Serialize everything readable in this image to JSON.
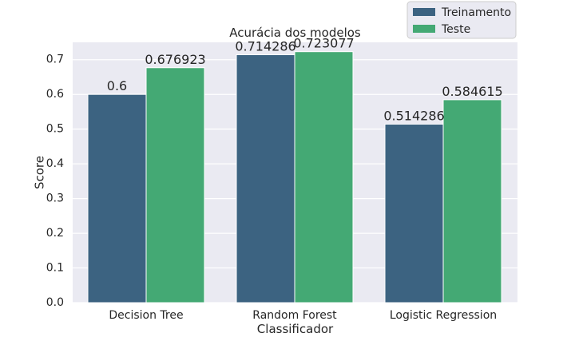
{
  "chart_data": {
    "type": "bar",
    "title": "Acurácia dos modelos",
    "xlabel": "Classificador",
    "ylabel": "Score",
    "ylim": [
      0,
      0.75
    ],
    "yticks": [
      "0.0",
      "0.1",
      "0.2",
      "0.3",
      "0.4",
      "0.5",
      "0.6",
      "0.7"
    ],
    "categories": [
      "Decision Tree",
      "Random Forest",
      "Logistic Regression"
    ],
    "series": [
      {
        "name": "Treinamento",
        "color": "#3c6381",
        "values": [
          0.6,
          0.714286,
          0.514286
        ],
        "labels": [
          "0.6",
          "0.714286",
          "0.514286"
        ]
      },
      {
        "name": "Teste",
        "color": "#44a974",
        "values": [
          0.676923,
          0.723077,
          0.584615
        ],
        "labels": [
          "0.676923",
          "0.723077",
          "0.584615"
        ]
      }
    ],
    "grid": true,
    "legend_position": "top-right",
    "background_color": "#eaeaf2",
    "grid_color": "#ffffff",
    "text_color": "#262626"
  }
}
